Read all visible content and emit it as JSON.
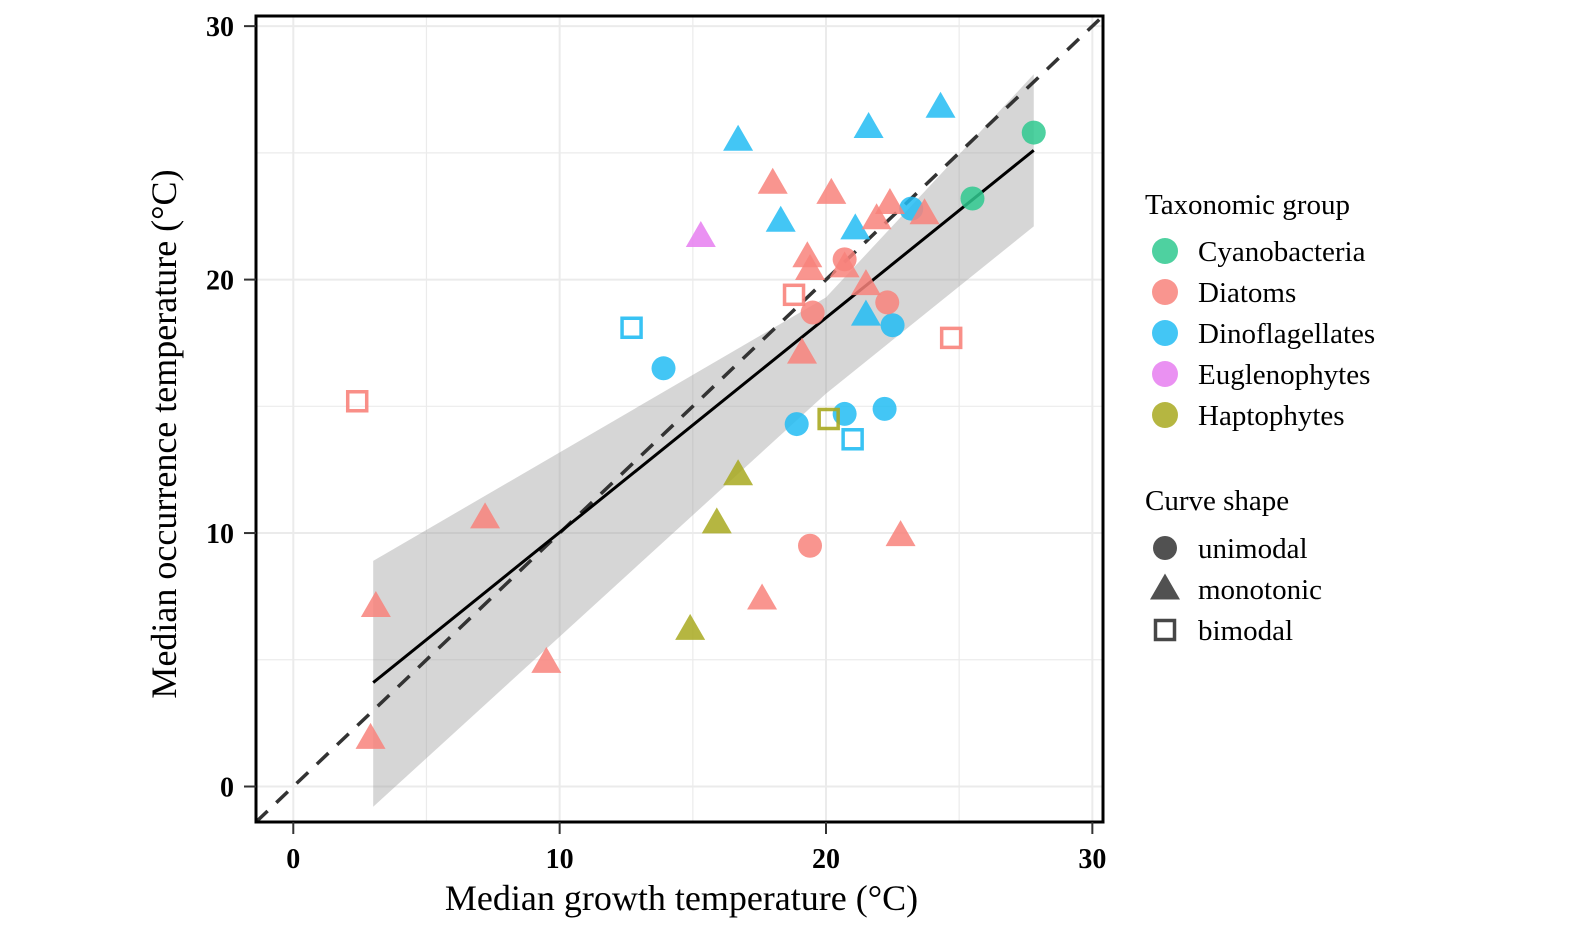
{
  "chart_data": {
    "type": "scatter",
    "title": "",
    "xlabel": "Median growth temperature (°C)",
    "ylabel": "Median occurrence temperature (°C)",
    "xlim": [
      -1.4,
      30.4
    ],
    "ylim": [
      -1.4,
      30.4
    ],
    "xticks": [
      0,
      10,
      20,
      30
    ],
    "yticks": [
      0,
      10,
      20,
      30
    ],
    "xtick_labels": [
      "0",
      "10",
      "20",
      "30"
    ],
    "ytick_labels": [
      "0",
      "10",
      "20",
      "30"
    ],
    "grid": true,
    "legend_position": "right",
    "legend": {
      "color_title": "Taxonomic group",
      "groups": [
        {
          "name": "Cyanobacteria",
          "color": "#2fc98f"
        },
        {
          "name": "Diatoms",
          "color": "#f8837b"
        },
        {
          "name": "Dinoflagellates",
          "color": "#22bcf3"
        },
        {
          "name": "Euglenophytes",
          "color": "#e67ef0"
        },
        {
          "name": "Haptophytes",
          "color": "#a8a920"
        }
      ],
      "shape_title": "Curve shape",
      "shapes": [
        {
          "name": "unimodal",
          "symbol": "circle"
        },
        {
          "name": "monotonic",
          "symbol": "triangle"
        },
        {
          "name": "bimodal",
          "symbol": "open-square"
        }
      ]
    },
    "reference_line": {
      "type": "identity",
      "style": "dashed",
      "label": "1:1"
    },
    "regression": {
      "x": [
        3.0,
        27.8
      ],
      "y": [
        4.1,
        25.1
      ],
      "ci_lower": [
        -0.8,
        22.1
      ],
      "ci_upper": [
        8.9,
        28.1
      ],
      "ci_mid": {
        "x": 20.0,
        "lower": 15.5,
        "upper": 19.3
      }
    },
    "points": [
      {
        "group": "Cyanobacteria",
        "shape": "unimodal",
        "x": 27.8,
        "y": 25.8
      },
      {
        "group": "Cyanobacteria",
        "shape": "unimodal",
        "x": 25.5,
        "y": 23.2
      },
      {
        "group": "Dinoflagellates",
        "shape": "monotonic",
        "x": 16.7,
        "y": 25.5
      },
      {
        "group": "Dinoflagellates",
        "shape": "monotonic",
        "x": 21.6,
        "y": 26.0
      },
      {
        "group": "Dinoflagellates",
        "shape": "monotonic",
        "x": 24.3,
        "y": 26.8
      },
      {
        "group": "Dinoflagellates",
        "shape": "monotonic",
        "x": 18.3,
        "y": 22.3
      },
      {
        "group": "Dinoflagellates",
        "shape": "monotonic",
        "x": 21.1,
        "y": 22.0
      },
      {
        "group": "Dinoflagellates",
        "shape": "monotonic",
        "x": 21.5,
        "y": 18.6
      },
      {
        "group": "Dinoflagellates",
        "shape": "unimodal",
        "x": 23.2,
        "y": 22.8
      },
      {
        "group": "Dinoflagellates",
        "shape": "unimodal",
        "x": 22.5,
        "y": 18.2
      },
      {
        "group": "Dinoflagellates",
        "shape": "unimodal",
        "x": 13.9,
        "y": 16.5
      },
      {
        "group": "Dinoflagellates",
        "shape": "unimodal",
        "x": 18.9,
        "y": 14.3
      },
      {
        "group": "Dinoflagellates",
        "shape": "unimodal",
        "x": 20.7,
        "y": 14.7
      },
      {
        "group": "Dinoflagellates",
        "shape": "unimodal",
        "x": 22.2,
        "y": 14.9
      },
      {
        "group": "Dinoflagellates",
        "shape": "bimodal",
        "x": 12.7,
        "y": 18.1
      },
      {
        "group": "Dinoflagellates",
        "shape": "bimodal",
        "x": 21.0,
        "y": 13.7
      },
      {
        "group": "Euglenophytes",
        "shape": "monotonic",
        "x": 15.3,
        "y": 21.7
      },
      {
        "group": "Haptophytes",
        "shape": "monotonic",
        "x": 16.7,
        "y": 12.3
      },
      {
        "group": "Haptophytes",
        "shape": "monotonic",
        "x": 15.9,
        "y": 10.4
      },
      {
        "group": "Haptophytes",
        "shape": "monotonic",
        "x": 14.9,
        "y": 6.2
      },
      {
        "group": "Haptophytes",
        "shape": "bimodal",
        "x": 20.1,
        "y": 14.5
      },
      {
        "group": "Diatoms",
        "shape": "monotonic",
        "x": 18.0,
        "y": 23.8
      },
      {
        "group": "Diatoms",
        "shape": "monotonic",
        "x": 20.2,
        "y": 23.4
      },
      {
        "group": "Diatoms",
        "shape": "monotonic",
        "x": 22.4,
        "y": 23.0
      },
      {
        "group": "Diatoms",
        "shape": "monotonic",
        "x": 21.9,
        "y": 22.4
      },
      {
        "group": "Diatoms",
        "shape": "monotonic",
        "x": 23.7,
        "y": 22.6
      },
      {
        "group": "Diatoms",
        "shape": "monotonic",
        "x": 19.3,
        "y": 20.9
      },
      {
        "group": "Diatoms",
        "shape": "monotonic",
        "x": 19.4,
        "y": 20.4
      },
      {
        "group": "Diatoms",
        "shape": "monotonic",
        "x": 20.7,
        "y": 20.5
      },
      {
        "group": "Diatoms",
        "shape": "monotonic",
        "x": 21.5,
        "y": 19.8
      },
      {
        "group": "Diatoms",
        "shape": "monotonic",
        "x": 19.1,
        "y": 17.1
      },
      {
        "group": "Diatoms",
        "shape": "monotonic",
        "x": 7.2,
        "y": 10.6
      },
      {
        "group": "Diatoms",
        "shape": "monotonic",
        "x": 3.1,
        "y": 7.1
      },
      {
        "group": "Diatoms",
        "shape": "monotonic",
        "x": 2.9,
        "y": 1.9
      },
      {
        "group": "Diatoms",
        "shape": "monotonic",
        "x": 9.5,
        "y": 4.9
      },
      {
        "group": "Diatoms",
        "shape": "monotonic",
        "x": 17.6,
        "y": 7.4
      },
      {
        "group": "Diatoms",
        "shape": "monotonic",
        "x": 22.8,
        "y": 9.9
      },
      {
        "group": "Diatoms",
        "shape": "unimodal",
        "x": 20.7,
        "y": 20.8
      },
      {
        "group": "Diatoms",
        "shape": "unimodal",
        "x": 19.5,
        "y": 18.7
      },
      {
        "group": "Diatoms",
        "shape": "unimodal",
        "x": 22.3,
        "y": 19.1
      },
      {
        "group": "Diatoms",
        "shape": "unimodal",
        "x": 19.4,
        "y": 9.5
      },
      {
        "group": "Diatoms",
        "shape": "bimodal",
        "x": 2.4,
        "y": 15.2
      },
      {
        "group": "Diatoms",
        "shape": "bimodal",
        "x": 18.8,
        "y": 19.4
      },
      {
        "group": "Diatoms",
        "shape": "bimodal",
        "x": 24.7,
        "y": 17.7
      }
    ]
  }
}
